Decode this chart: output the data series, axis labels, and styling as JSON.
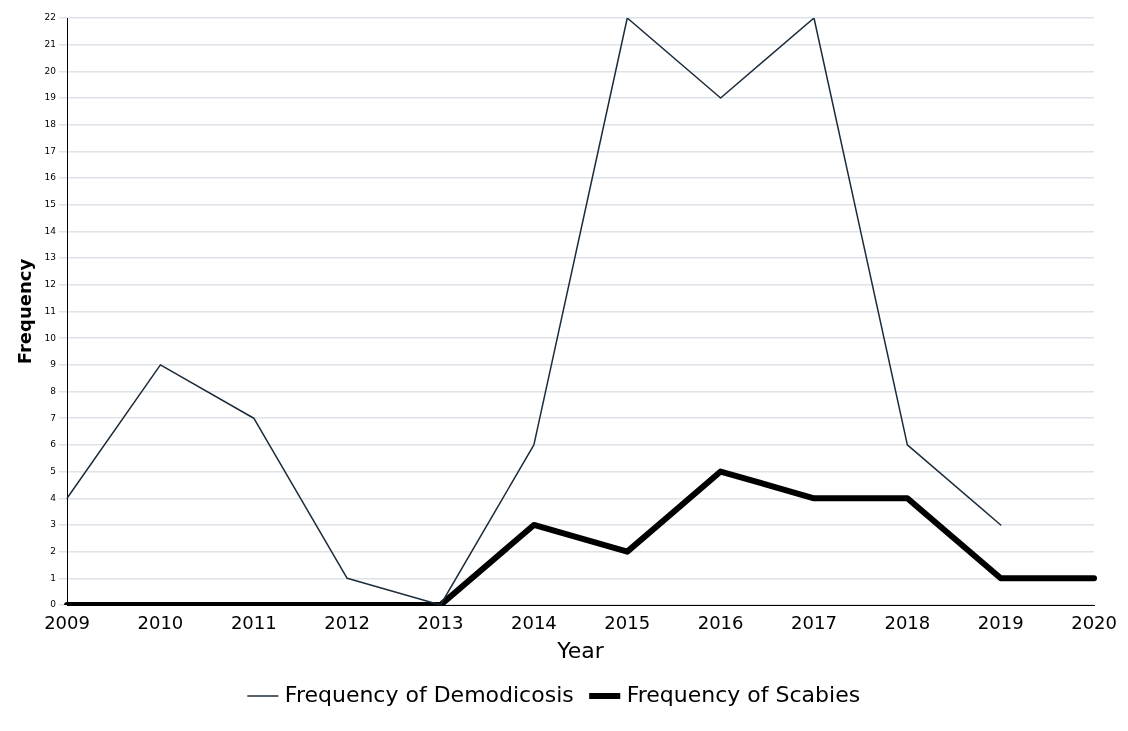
{
  "chart_data": {
    "type": "line",
    "xlabel": "Year",
    "ylabel": "Frequency",
    "categories": [
      "2009",
      "2010",
      "2011",
      "2012",
      "2013",
      "2014",
      "2015",
      "2016",
      "2017",
      "2018",
      "2019",
      "2020"
    ],
    "series": [
      {
        "name": "Frequency of Demodicosis",
        "color": "#1c2b3a",
        "values": [
          4,
          9,
          7,
          1,
          0,
          6,
          22,
          19,
          22,
          6,
          3,
          null
        ]
      },
      {
        "name": "Frequency of Scabies",
        "color": "#000000",
        "values": [
          0,
          0,
          0,
          0,
          0,
          3,
          2,
          5,
          4,
          4,
          1,
          1
        ]
      }
    ],
    "ylim": [
      0,
      22
    ],
    "yticks": [
      0,
      1,
      2,
      3,
      4,
      5,
      6,
      7,
      8,
      9,
      10,
      11,
      12,
      13,
      14,
      15,
      16,
      17,
      18,
      19,
      20,
      21,
      22
    ],
    "grid": "y",
    "legend": "bottom",
    "marker": "none",
    "line_style": "solid"
  }
}
